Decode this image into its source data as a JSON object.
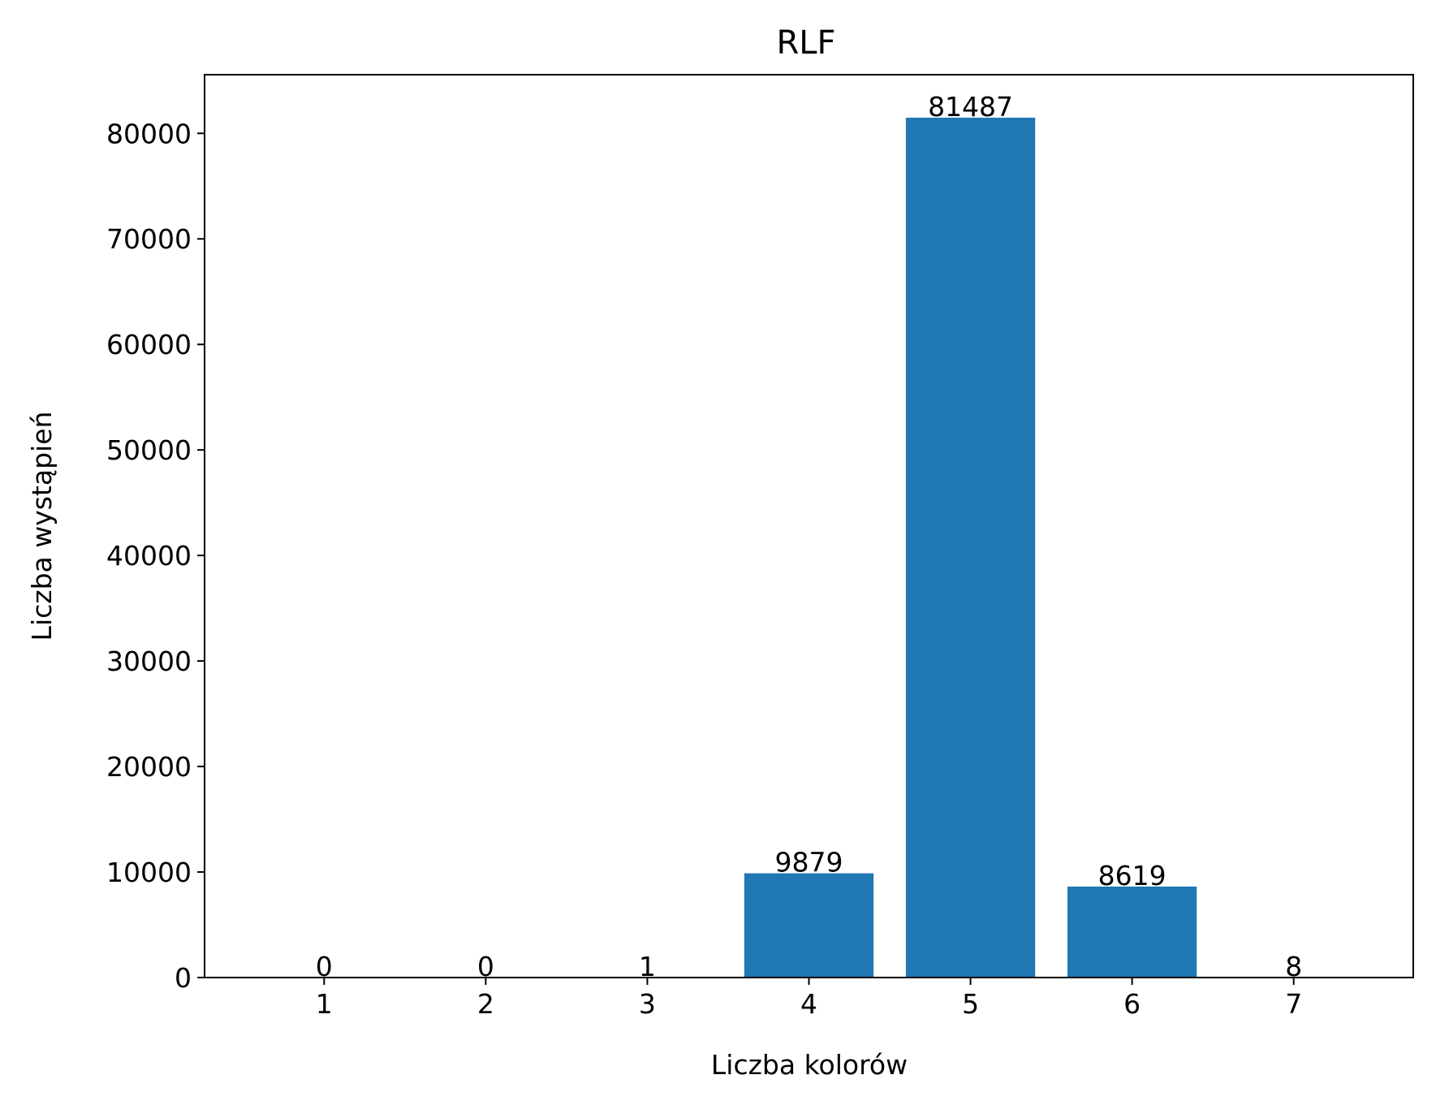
{
  "chart_data": {
    "type": "bar",
    "title": "RLF",
    "xlabel": "Liczba kolorów",
    "ylabel": "Liczba wystąpień",
    "categories": [
      "1",
      "2",
      "3",
      "4",
      "5",
      "6",
      "7"
    ],
    "values": [
      0,
      0,
      1,
      9879,
      81487,
      8619,
      8
    ],
    "data_labels": [
      "0",
      "0",
      "1",
      "9879",
      "81487",
      "8619",
      "8"
    ],
    "yticks": [
      0,
      10000,
      20000,
      30000,
      40000,
      50000,
      60000,
      70000,
      80000
    ],
    "ytick_labels": [
      "0",
      "10000",
      "20000",
      "30000",
      "40000",
      "50000",
      "60000",
      "70000",
      "80000"
    ],
    "xlim": [
      0.26,
      7.74
    ],
    "ylim": [
      0,
      85561
    ],
    "grid": false,
    "legend": "none",
    "bar_color": "#1f77b4"
  }
}
